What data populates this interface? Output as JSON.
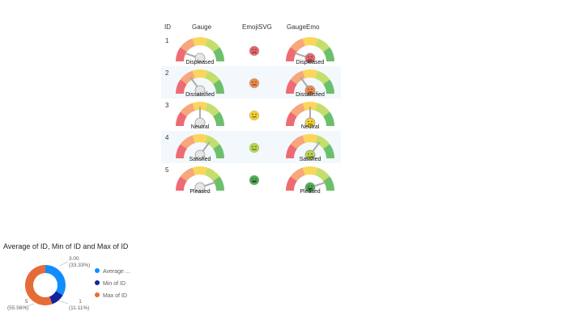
{
  "table": {
    "headers": {
      "id": "ID",
      "gauge": "Gauge",
      "emoji": "EmojiSVG",
      "gauge_emo": "GaugeEmo"
    },
    "rows": [
      {
        "id": "1",
        "label": "Displeased",
        "level": 0.1,
        "face_color": "#e8656a",
        "mouth": "frown"
      },
      {
        "id": "2",
        "label": "Dissatisfied",
        "level": 0.3,
        "face_color": "#f08a4b",
        "mouth": "slight-frown"
      },
      {
        "id": "3",
        "label": "Neutral",
        "level": 0.5,
        "face_color": "#f5d02f",
        "mouth": "flat"
      },
      {
        "id": "4",
        "label": "Satisfied",
        "level": 0.7,
        "face_color": "#b7d84b",
        "mouth": "smile"
      },
      {
        "id": "5",
        "label": "Pleased",
        "level": 0.9,
        "face_color": "#4caf50",
        "mouth": "big-smile"
      }
    ],
    "gauge_colors": [
      "#ef6b73",
      "#f6a77c",
      "#fad65a",
      "#c5de6b",
      "#6cc06b"
    ]
  },
  "donut": {
    "title": "Average of ID, Min of ID and Max of ID",
    "chart_data": {
      "type": "pie",
      "categories": [
        "Average of ID",
        "Min of ID",
        "Max of ID"
      ],
      "values": [
        3,
        1,
        5
      ],
      "percent_labels": [
        "3.00",
        "1",
        "5"
      ],
      "percents": [
        "(33.33%)",
        "(11.11%)",
        "(55.56%)"
      ],
      "colors": [
        "#118dff",
        "#12239e",
        "#e66c37"
      ]
    },
    "legend": [
      "Average ...",
      "Min of ID",
      "Max of ID"
    ]
  }
}
